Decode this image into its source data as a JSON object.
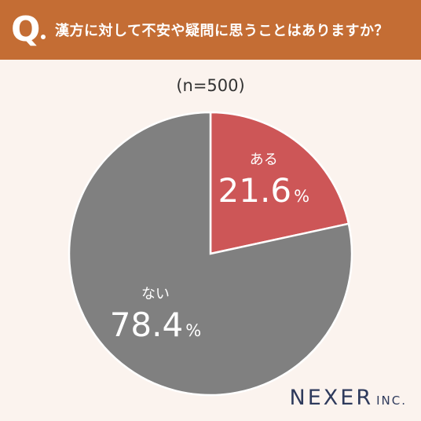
{
  "header": {
    "q_mark": "Q",
    "question": "漢方に対して不安や疑問に思うことはありますか？"
  },
  "sample": "(n=500)",
  "chart_data": {
    "type": "pie",
    "title": "漢方に対して不安や疑問に思うことはありますか？",
    "n": 500,
    "slices": [
      {
        "label": "ある",
        "value": 21.6,
        "unit": "%",
        "color": "#cd5657"
      },
      {
        "label": "ない",
        "value": 78.4,
        "unit": "%",
        "color": "#808080"
      }
    ],
    "start_angle_deg": 0,
    "direction": "clockwise"
  },
  "logo": {
    "name": "NEXER",
    "suffix": "INC."
  }
}
